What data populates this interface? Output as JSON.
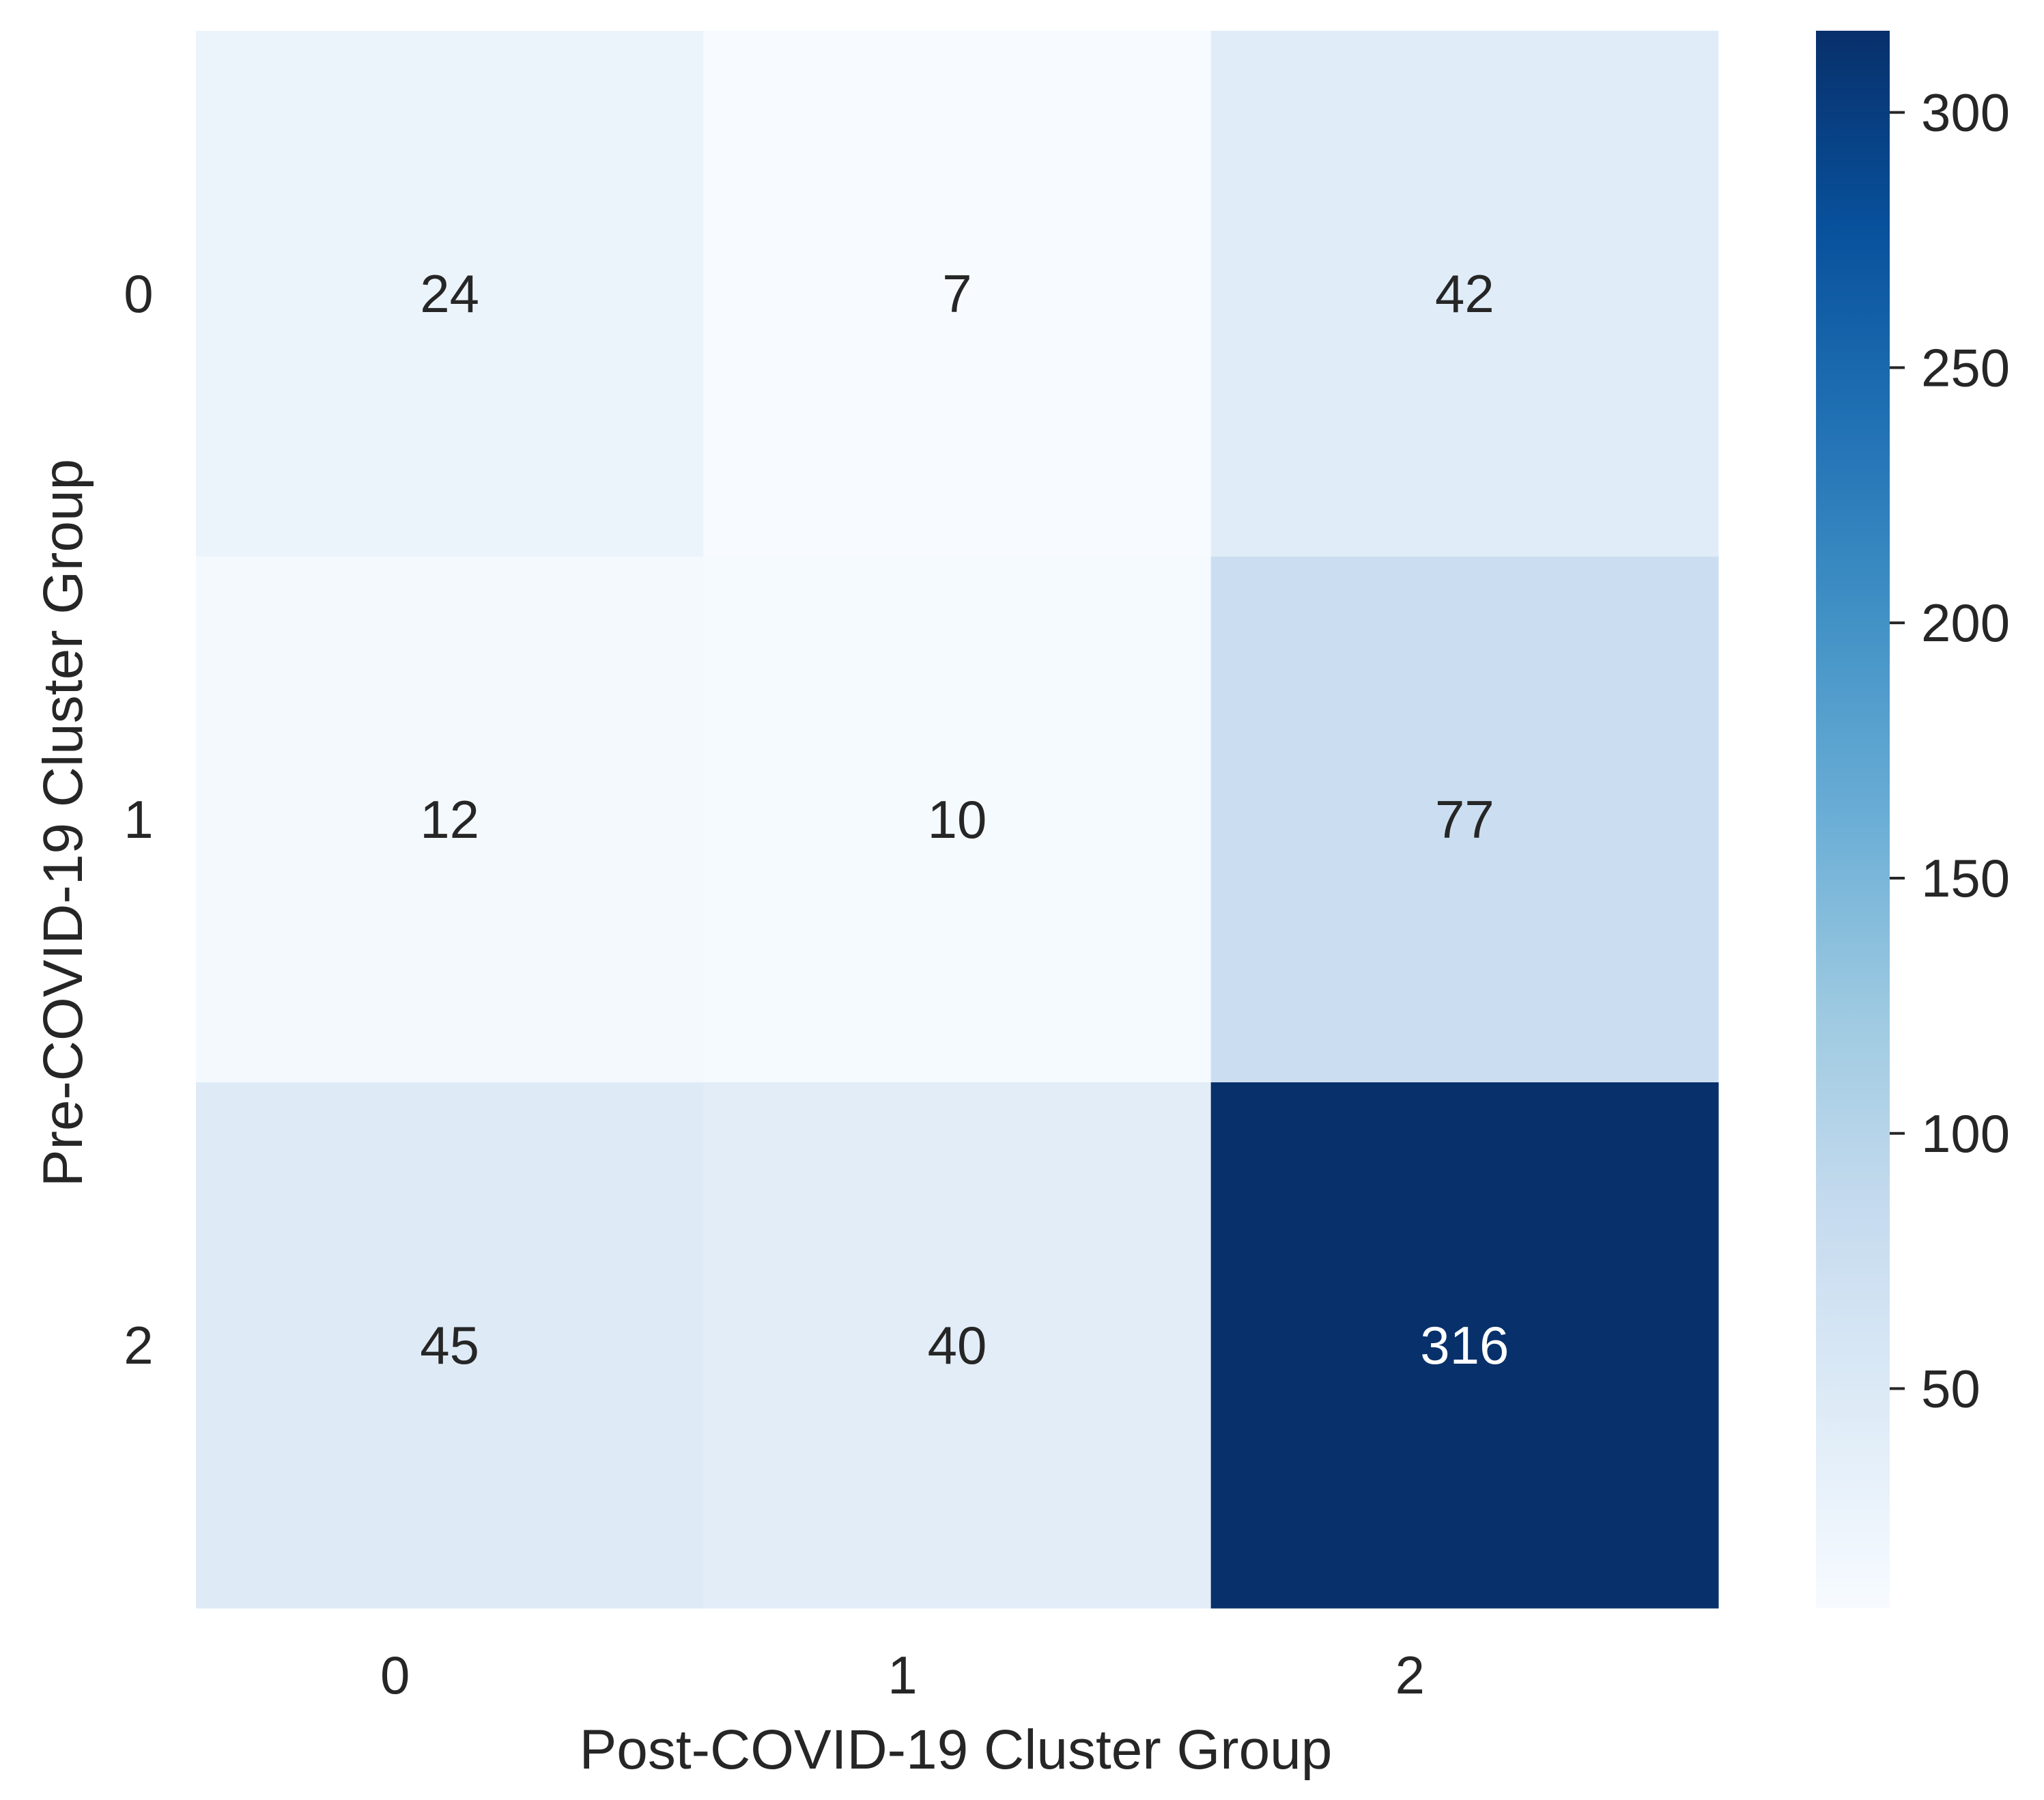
{
  "chart_data": {
    "type": "heatmap",
    "title": "",
    "xlabel": "Post-COVID-19 Cluster Group",
    "ylabel": "Pre-COVID-19 Cluster Group",
    "x_categories": [
      "0",
      "1",
      "2"
    ],
    "y_categories": [
      "0",
      "1",
      "2"
    ],
    "values": [
      [
        24,
        7,
        42
      ],
      [
        12,
        10,
        77
      ],
      [
        45,
        40,
        316
      ]
    ],
    "colormap": "Blues",
    "colorbar": {
      "range": [
        7,
        316
      ],
      "ticks": [
        50,
        100,
        150,
        200,
        250,
        300
      ]
    },
    "colors": {
      "text_dark": "#262626",
      "text_light": "#ffffff",
      "low": "#f7fbff",
      "high": "#08306b"
    }
  }
}
